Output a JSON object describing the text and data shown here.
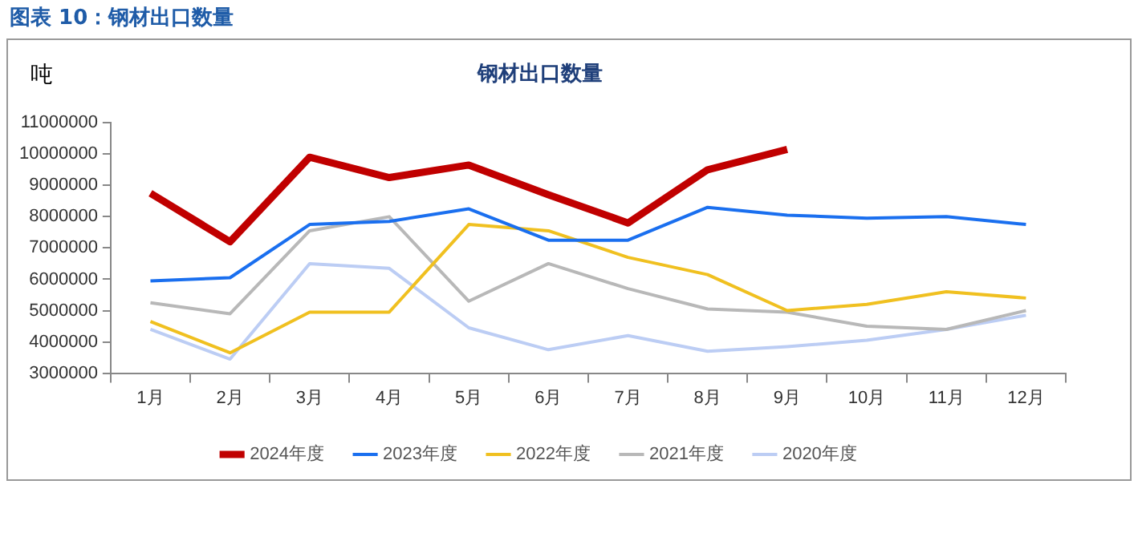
{
  "chart_data": {
    "type": "line",
    "title": "钢材出口数量",
    "ylabel": "吨",
    "annotations": [
      "图表 10：钢材出口数量"
    ],
    "categories": [
      "1月",
      "2月",
      "3月",
      "4月",
      "5月",
      "6月",
      "7月",
      "8月",
      "9月",
      "10月",
      "11月",
      "12月"
    ],
    "ylim": [
      3000000,
      11000000
    ],
    "yticks": [
      3000000,
      4000000,
      5000000,
      6000000,
      7000000,
      8000000,
      9000000,
      10000000,
      11000000
    ],
    "grid": false,
    "legend": "bottom",
    "marker": "none",
    "line_style": "solid",
    "series": [
      {
        "name": "2024年度",
        "color": "#c00000",
        "values": [
          8750000,
          7200000,
          9900000,
          9250000,
          9650000,
          8700000,
          7800000,
          9500000,
          10150000,
          null,
          null,
          null
        ]
      },
      {
        "name": "2023年度",
        "color": "#1a6fef",
        "values": [
          5950000,
          6050000,
          7750000,
          7850000,
          8250000,
          7250000,
          7250000,
          8300000,
          8050000,
          7950000,
          8000000,
          7750000
        ]
      },
      {
        "name": "2022年度",
        "color": "#f0c020",
        "values": [
          4650000,
          3650000,
          4950000,
          4950000,
          7750000,
          7550000,
          6700000,
          6150000,
          5000000,
          5200000,
          5600000,
          5400000
        ]
      },
      {
        "name": "2021年度",
        "color": "#b8b8b8",
        "values": [
          5250000,
          4900000,
          7550000,
          8000000,
          5300000,
          6500000,
          5700000,
          5050000,
          4950000,
          4500000,
          4400000,
          5000000
        ]
      },
      {
        "name": "2020年度",
        "color": "#bccdf4",
        "values": [
          4400000,
          3450000,
          6500000,
          6350000,
          4450000,
          3750000,
          4200000,
          3700000,
          3850000,
          4050000,
          4400000,
          4850000
        ]
      }
    ]
  }
}
